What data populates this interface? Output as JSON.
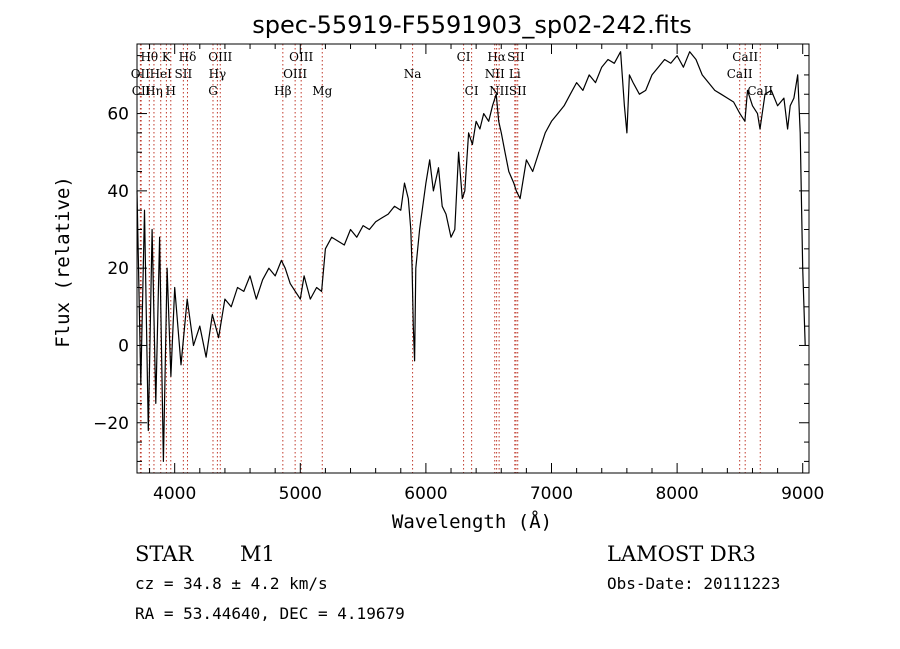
{
  "chart_data": {
    "type": "line",
    "title": "spec-55919-F5591903_sp02-242.fits",
    "xlabel": "Wavelength (Å)",
    "ylabel": "Flux (relative)",
    "xlim": [
      3700,
      9050
    ],
    "ylim": [
      -33,
      78
    ],
    "xticks": [
      4000,
      5000,
      6000,
      7000,
      8000,
      9000
    ],
    "yticks": [
      -20,
      0,
      20,
      40,
      60
    ],
    "grid": false,
    "series": [
      {
        "name": "flux",
        "color": "#000000",
        "x": [
          3700,
          3730,
          3760,
          3790,
          3820,
          3850,
          3880,
          3910,
          3940,
          3970,
          4000,
          4050,
          4100,
          4150,
          4200,
          4250,
          4300,
          4350,
          4400,
          4450,
          4500,
          4550,
          4600,
          4650,
          4700,
          4750,
          4800,
          4850,
          4880,
          4920,
          4960,
          5000,
          5030,
          5080,
          5130,
          5170,
          5200,
          5250,
          5300,
          5350,
          5400,
          5450,
          5500,
          5550,
          5600,
          5650,
          5700,
          5750,
          5800,
          5830,
          5860,
          5880,
          5890,
          5900,
          5910,
          5920,
          5950,
          6000,
          6030,
          6060,
          6100,
          6130,
          6160,
          6200,
          6230,
          6260,
          6290,
          6310,
          6340,
          6370,
          6400,
          6430,
          6460,
          6500,
          6530,
          6560,
          6580,
          6600,
          6630,
          6660,
          6700,
          6720,
          6750,
          6800,
          6850,
          6900,
          6950,
          7000,
          7050,
          7100,
          7150,
          7200,
          7250,
          7300,
          7350,
          7400,
          7450,
          7500,
          7550,
          7580,
          7600,
          7620,
          7650,
          7700,
          7750,
          7800,
          7850,
          7900,
          7950,
          8000,
          8050,
          8100,
          8150,
          8200,
          8250,
          8300,
          8350,
          8400,
          8450,
          8500,
          8540,
          8560,
          8600,
          8640,
          8660,
          8700,
          8750,
          8800,
          8850,
          8880,
          8900,
          8930,
          8960,
          8980,
          9000,
          9020
        ],
        "y": [
          40,
          -10,
          35,
          -22,
          30,
          -15,
          28,
          -30,
          20,
          -8,
          15,
          -5,
          12,
          0,
          5,
          -3,
          8,
          2,
          12,
          10,
          15,
          14,
          18,
          12,
          17,
          20,
          18,
          22,
          20,
          16,
          14,
          12,
          18,
          12,
          15,
          14,
          25,
          28,
          27,
          26,
          30,
          28,
          31,
          30,
          32,
          33,
          34,
          36,
          35,
          42,
          38,
          30,
          20,
          5,
          -4,
          20,
          30,
          42,
          48,
          40,
          46,
          36,
          34,
          28,
          30,
          50,
          38,
          40,
          55,
          52,
          58,
          56,
          60,
          58,
          62,
          65,
          58,
          55,
          50,
          45,
          42,
          40,
          38,
          48,
          45,
          50,
          55,
          58,
          60,
          62,
          65,
          68,
          66,
          70,
          68,
          72,
          74,
          73,
          76,
          62,
          55,
          70,
          68,
          65,
          66,
          70,
          72,
          74,
          73,
          75,
          72,
          76,
          74,
          70,
          68,
          66,
          65,
          64,
          63,
          60,
          58,
          66,
          62,
          60,
          56,
          65,
          66,
          62,
          64,
          56,
          62,
          64,
          70,
          55,
          20,
          0
        ]
      }
    ],
    "line_markers": [
      {
        "label": "Hθ",
        "x": 3798,
        "row": 1
      },
      {
        "label": "OII",
        "x": 3727,
        "row": 2
      },
      {
        "label": "CII",
        "x": 3733,
        "row": 3
      },
      {
        "label": "Hη",
        "x": 3835,
        "row": 3
      },
      {
        "label": "HeI",
        "x": 3889,
        "row": 2
      },
      {
        "label": "K",
        "x": 3934,
        "row": 1
      },
      {
        "label": "H",
        "x": 3969,
        "row": 3
      },
      {
        "label": "SII",
        "x": 4069,
        "row": 2
      },
      {
        "label": "Hδ",
        "x": 4102,
        "row": 1
      },
      {
        "label": "OIII",
        "x": 4363,
        "row": 1
      },
      {
        "label": "Hγ",
        "x": 4340,
        "row": 2
      },
      {
        "label": "G",
        "x": 4305,
        "row": 3
      },
      {
        "label": "Hβ",
        "x": 4861,
        "row": 3
      },
      {
        "label": "OIII",
        "x": 5007,
        "row": 1
      },
      {
        "label": "OIII",
        "x": 4959,
        "row": 2
      },
      {
        "label": "Mg",
        "x": 5175,
        "row": 3
      },
      {
        "label": "Na",
        "x": 5894,
        "row": 2
      },
      {
        "label": "CI",
        "x": 6300,
        "row": 1
      },
      {
        "label": "CI",
        "x": 6364,
        "row": 3
      },
      {
        "label": "Hα",
        "x": 6563,
        "row": 1
      },
      {
        "label": "SII",
        "x": 6717,
        "row": 1
      },
      {
        "label": "NII",
        "x": 6548,
        "row": 2
      },
      {
        "label": "Li",
        "x": 6708,
        "row": 2
      },
      {
        "label": "NII",
        "x": 6583,
        "row": 3
      },
      {
        "label": "SII",
        "x": 6731,
        "row": 3
      },
      {
        "label": "CaII",
        "x": 8542,
        "row": 1
      },
      {
        "label": "CaII",
        "x": 8498,
        "row": 2
      },
      {
        "label": "CaII",
        "x": 8662,
        "row": 3
      }
    ]
  },
  "info": {
    "object_type": "STAR",
    "subclass": "M1",
    "survey": "LAMOST DR3",
    "cz": "cz = 34.8 ± 4.2 km/s",
    "obs_date": "Obs-Date: 20111223",
    "coords": "RA =  53.44640, DEC =   4.19679"
  }
}
